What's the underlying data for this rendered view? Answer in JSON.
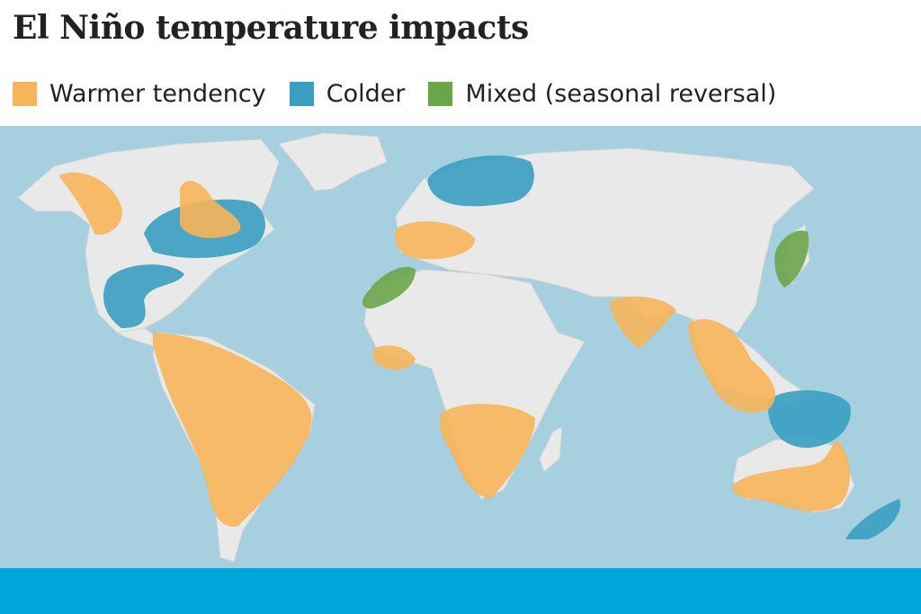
{
  "title": "El Niño temperature impacts",
  "legend": [
    {
      "label": "Warmer tendency",
      "color": "#f7b55a"
    },
    {
      "label": "Colder",
      "color": "#3a9ec2"
    },
    {
      "label": "Mixed (seasonal reversal)",
      "color": "#6ba54a"
    }
  ]
}
